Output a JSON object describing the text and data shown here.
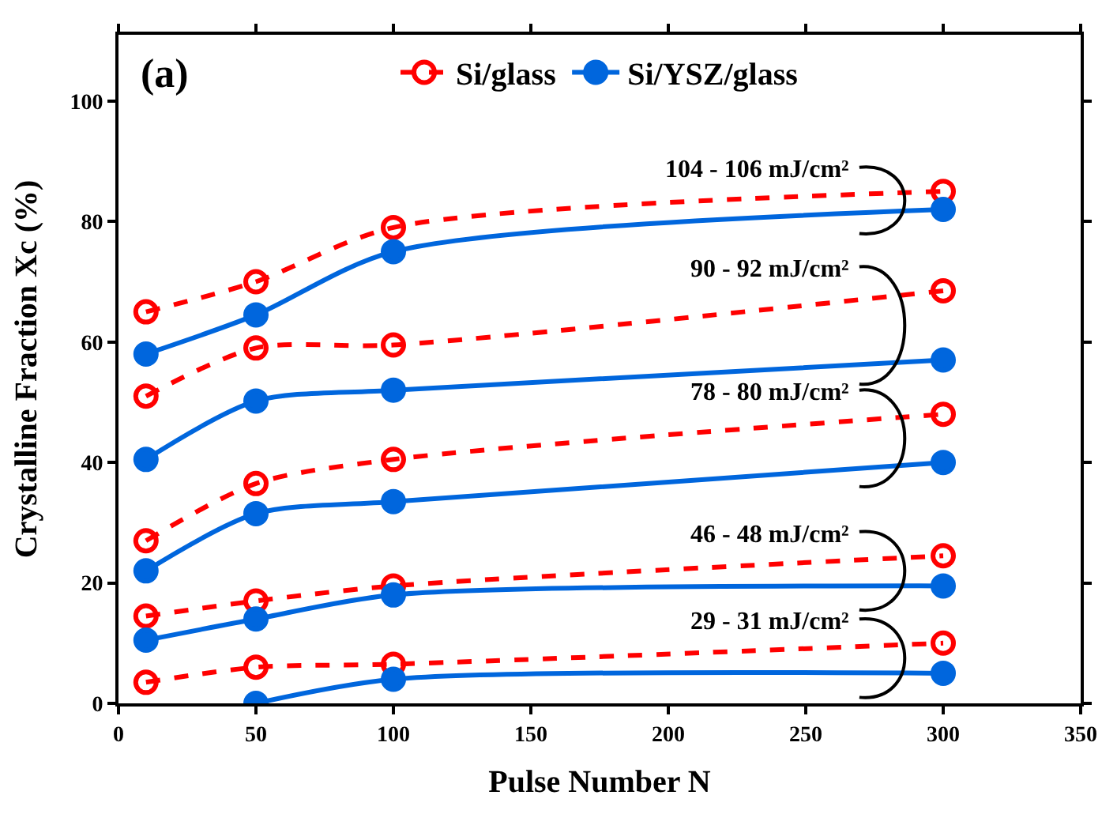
{
  "chart_data": {
    "type": "line",
    "xlabel": "Pulse Number N",
    "ylabel": "Crystalline Fraction Xc (%)",
    "x": [
      10,
      50,
      100,
      300
    ],
    "series": [
      {
        "name": "Si/glass",
        "color": "#ff0000",
        "values": [
          65,
          70,
          79,
          85
        ],
        "marker": "circle-open",
        "line_style": "dashed"
      },
      {
        "name": "Si/YSZ/glass",
        "color": "#0066dd",
        "values": [
          58,
          64.5,
          75,
          82
        ],
        "marker": "circle",
        "line_style": "solid"
      },
      {
        "color": "#ff0000",
        "values": [
          51,
          59,
          59.5,
          68.5
        ],
        "marker": "circle-open",
        "line_style": "dashed"
      },
      {
        "color": "#0066dd",
        "values": [
          40.5,
          50.2,
          52,
          57
        ],
        "marker": "circle",
        "line_style": "solid"
      },
      {
        "color": "#ff0000",
        "values": [
          27,
          36.5,
          40.5,
          48
        ],
        "marker": "circle-open",
        "line_style": "dashed"
      },
      {
        "color": "#0066dd",
        "values": [
          22,
          31.5,
          33.5,
          40
        ],
        "marker": "circle",
        "line_style": "solid"
      },
      {
        "color": "#ff0000",
        "values": [
          14.5,
          17,
          19.5,
          24.5
        ],
        "marker": "circle-open",
        "line_style": "dashed"
      },
      {
        "color": "#0066dd",
        "values": [
          10.5,
          14,
          18,
          19.5
        ],
        "marker": "circle",
        "line_style": "solid"
      },
      {
        "color": "#ff0000",
        "values": [
          3.5,
          6,
          6.5,
          10
        ],
        "marker": "circle-open",
        "line_style": "dashed"
      },
      {
        "color": "#0066dd",
        "values": [
          null,
          0,
          4,
          5
        ],
        "marker": "circle",
        "line_style": "solid"
      }
    ],
    "annotations": [
      "104 - 106 mJ/cm²",
      "90 - 92 mJ/cm²",
      "78 - 80 mJ/cm²",
      "46 - 48 mJ/cm²",
      "29 - 31 mJ/cm²",
      "(a)"
    ],
    "xlim": [
      0,
      350
    ],
    "xticks": [
      0,
      50,
      100,
      150,
      200,
      250,
      300,
      350
    ],
    "ylim": [
      0,
      111
    ],
    "yticks": [
      0,
      20,
      40,
      60,
      80,
      100
    ],
    "legend": "top"
  }
}
